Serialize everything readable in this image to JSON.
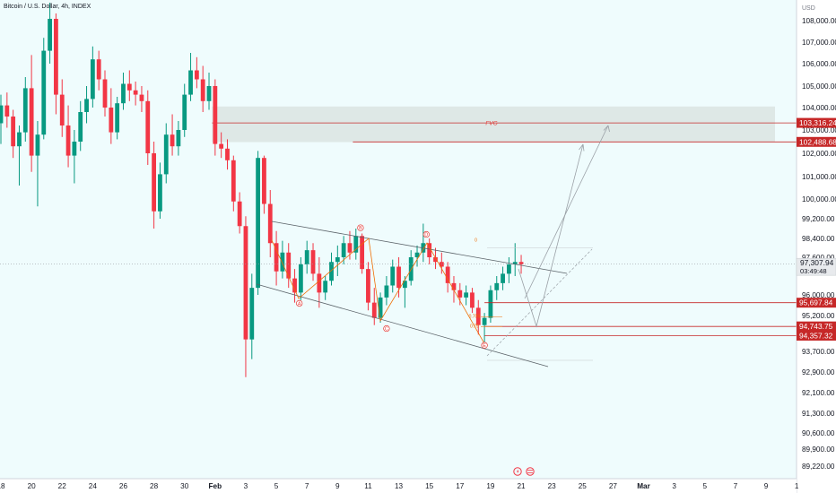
{
  "title": "Bitcoin / U.S. Dollar, 4h, INDEX",
  "currency": "USD",
  "colors": {
    "up": "#089981",
    "down": "#f23645",
    "accent": "#c62828",
    "background": "#effcfd"
  },
  "chart_data": {
    "type": "candlestick",
    "title": "Bitcoin / U.S. Dollar, 4h, INDEX",
    "ylim": [
      88900,
      109000
    ],
    "x_range": [
      "Jan 18",
      "Mar 1"
    ],
    "y_ticks": [
      {
        "value": 108000,
        "label": "108,000.00"
      },
      {
        "value": 107000,
        "label": "107,000.00"
      },
      {
        "value": 106000,
        "label": "106,000.00"
      },
      {
        "value": 105000,
        "label": "105,000.00"
      },
      {
        "value": 104000,
        "label": "104,000.00"
      },
      {
        "value": 103000,
        "label": "103,000.00"
      },
      {
        "value": 102000,
        "label": "102,000.00"
      },
      {
        "value": 101000,
        "label": "101,000.00"
      },
      {
        "value": 100000,
        "label": "100,000.00"
      },
      {
        "value": 99200,
        "label": "99,200.00"
      },
      {
        "value": 98400,
        "label": "98,400.00"
      },
      {
        "value": 97600,
        "label": "97,600.00"
      },
      {
        "value": 96000,
        "label": "96,000.00"
      },
      {
        "value": 95200,
        "label": "95,200.00"
      },
      {
        "value": 93700,
        "label": "93,700.00"
      },
      {
        "value": 92900,
        "label": "92,900.00"
      },
      {
        "value": 92100,
        "label": "92,100.00"
      },
      {
        "value": 91300,
        "label": "91,300.00"
      },
      {
        "value": 90600,
        "label": "90,600.00"
      },
      {
        "value": 89900,
        "label": "89,900.00"
      },
      {
        "value": 89220,
        "label": "89,220.00"
      }
    ],
    "x_ticks": [
      {
        "day": 18,
        "label": "18"
      },
      {
        "day": 20,
        "label": "20"
      },
      {
        "day": 22,
        "label": "22"
      },
      {
        "day": 24,
        "label": "24"
      },
      {
        "day": 26,
        "label": "26"
      },
      {
        "day": 28,
        "label": "28"
      },
      {
        "day": 30,
        "label": "30"
      },
      {
        "day": 32,
        "label": "Feb"
      },
      {
        "day": 34,
        "label": "3"
      },
      {
        "day": 36,
        "label": "5"
      },
      {
        "day": 38,
        "label": "7"
      },
      {
        "day": 40,
        "label": "9"
      },
      {
        "day": 42,
        "label": "11"
      },
      {
        "day": 44,
        "label": "13"
      },
      {
        "day": 46,
        "label": "15"
      },
      {
        "day": 48,
        "label": "17"
      },
      {
        "day": 50,
        "label": "19"
      },
      {
        "day": 52,
        "label": "21"
      },
      {
        "day": 54,
        "label": "23"
      },
      {
        "day": 56,
        "label": "25"
      },
      {
        "day": 58,
        "label": "27"
      },
      {
        "day": 60,
        "label": "Mar"
      },
      {
        "day": 62,
        "label": "3"
      },
      {
        "day": 64,
        "label": "5"
      },
      {
        "day": 66,
        "label": "7"
      },
      {
        "day": 68,
        "label": "9"
      },
      {
        "day": 70,
        "label": "1"
      }
    ],
    "price_levels": [
      {
        "value": 103316.24,
        "label": "103,316.24",
        "color": "#c62828"
      },
      {
        "value": 102488.68,
        "label": "102,488.68",
        "color": "#c62828"
      },
      {
        "value": 95697.84,
        "label": "95,697.84",
        "color": "#c62828"
      },
      {
        "value": 94743.75,
        "label": "94,743.75",
        "color": "#c62828"
      },
      {
        "value": 94357.32,
        "label": "94,357.32",
        "color": "#c62828"
      }
    ],
    "current_price": {
      "value": 97307.94,
      "label": "97,307.94",
      "countdown": "03:49:48"
    },
    "fvg": {
      "label": "FVG",
      "from_day": 31.8,
      "top": 104050,
      "bottom": 102480
    },
    "waves": [
      {
        "label": "A",
        "day": 37.5,
        "price": 95880
      },
      {
        "label": "B",
        "day": 41.5,
        "price": 98650
      },
      {
        "label": "C",
        "day": 43.2,
        "price": 94880
      },
      {
        "label": "D",
        "day": 45.8,
        "price": 98380
      },
      {
        "label": "E",
        "day": 49.6,
        "price": 94180
      }
    ],
    "fib_labels": [
      {
        "text": "0",
        "day": 49.1,
        "price": 98300
      },
      {
        "text": "0.709",
        "day": 49.0,
        "price": 95140
      },
      {
        "text": "0.79",
        "day": 49.0,
        "price": 94740
      }
    ],
    "candles": [
      {
        "t": 18.0,
        "o": 103300,
        "h": 104600,
        "l": 102400,
        "c": 104100
      },
      {
        "t": 18.4,
        "o": 104100,
        "h": 104700,
        "l": 103100,
        "c": 103600
      },
      {
        "t": 18.8,
        "o": 103600,
        "h": 103900,
        "l": 101800,
        "c": 102300
      },
      {
        "t": 19.2,
        "o": 102300,
        "h": 103200,
        "l": 100600,
        "c": 102900
      },
      {
        "t": 19.6,
        "o": 102900,
        "h": 105400,
        "l": 102500,
        "c": 104900
      },
      {
        "t": 20.0,
        "o": 104900,
        "h": 106400,
        "l": 101200,
        "c": 101900
      },
      {
        "t": 20.4,
        "o": 101900,
        "h": 103400,
        "l": 99700,
        "c": 102800
      },
      {
        "t": 20.8,
        "o": 102800,
        "h": 107200,
        "l": 102600,
        "c": 106600
      },
      {
        "t": 21.2,
        "o": 106600,
        "h": 109200,
        "l": 106000,
        "c": 108100
      },
      {
        "t": 21.6,
        "o": 108100,
        "h": 108400,
        "l": 103700,
        "c": 104600
      },
      {
        "t": 22.0,
        "o": 104600,
        "h": 105300,
        "l": 102700,
        "c": 103200
      },
      {
        "t": 22.4,
        "o": 103200,
        "h": 104100,
        "l": 101400,
        "c": 101900
      },
      {
        "t": 22.8,
        "o": 101900,
        "h": 103000,
        "l": 100700,
        "c": 102500
      },
      {
        "t": 23.2,
        "o": 102500,
        "h": 104300,
        "l": 102100,
        "c": 103800
      },
      {
        "t": 23.6,
        "o": 103800,
        "h": 105000,
        "l": 103300,
        "c": 104400
      },
      {
        "t": 24.0,
        "o": 104400,
        "h": 106800,
        "l": 104000,
        "c": 106200
      },
      {
        "t": 24.4,
        "o": 106200,
        "h": 106600,
        "l": 104800,
        "c": 105300
      },
      {
        "t": 24.8,
        "o": 105300,
        "h": 105700,
        "l": 103600,
        "c": 104000
      },
      {
        "t": 25.2,
        "o": 104000,
        "h": 104900,
        "l": 102400,
        "c": 102900
      },
      {
        "t": 25.6,
        "o": 102900,
        "h": 104500,
        "l": 102600,
        "c": 104200
      },
      {
        "t": 26.0,
        "o": 104200,
        "h": 105600,
        "l": 103900,
        "c": 105100
      },
      {
        "t": 26.4,
        "o": 105100,
        "h": 105700,
        "l": 104300,
        "c": 104800
      },
      {
        "t": 26.8,
        "o": 104800,
        "h": 105200,
        "l": 104100,
        "c": 104600
      },
      {
        "t": 27.2,
        "o": 104600,
        "h": 105000,
        "l": 103800,
        "c": 104300
      },
      {
        "t": 27.6,
        "o": 104300,
        "h": 104800,
        "l": 101500,
        "c": 102000
      },
      {
        "t": 28.0,
        "o": 102000,
        "h": 102500,
        "l": 98800,
        "c": 99500
      },
      {
        "t": 28.4,
        "o": 99500,
        "h": 101600,
        "l": 99200,
        "c": 101100
      },
      {
        "t": 28.8,
        "o": 101100,
        "h": 103300,
        "l": 100700,
        "c": 102800
      },
      {
        "t": 29.2,
        "o": 102800,
        "h": 103700,
        "l": 101900,
        "c": 102300
      },
      {
        "t": 29.6,
        "o": 102300,
        "h": 103400,
        "l": 101900,
        "c": 103000
      },
      {
        "t": 30.0,
        "o": 103000,
        "h": 105100,
        "l": 102700,
        "c": 104600
      },
      {
        "t": 30.4,
        "o": 104600,
        "h": 106500,
        "l": 104300,
        "c": 105700
      },
      {
        "t": 30.8,
        "o": 105700,
        "h": 106300,
        "l": 104900,
        "c": 105300
      },
      {
        "t": 31.2,
        "o": 105300,
        "h": 105900,
        "l": 103800,
        "c": 104300
      },
      {
        "t": 31.6,
        "o": 104300,
        "h": 105600,
        "l": 103900,
        "c": 105000
      },
      {
        "t": 32.0,
        "o": 105000,
        "h": 105300,
        "l": 101900,
        "c": 102400
      },
      {
        "t": 32.4,
        "o": 102400,
        "h": 102900,
        "l": 101800,
        "c": 102200
      },
      {
        "t": 32.8,
        "o": 102200,
        "h": 102600,
        "l": 101300,
        "c": 101700
      },
      {
        "t": 33.2,
        "o": 101700,
        "h": 101900,
        "l": 99500,
        "c": 99900
      },
      {
        "t": 33.6,
        "o": 99900,
        "h": 100300,
        "l": 98600,
        "c": 98900
      },
      {
        "t": 34.0,
        "o": 98900,
        "h": 99300,
        "l": 92700,
        "c": 94200
      },
      {
        "t": 34.4,
        "o": 94200,
        "h": 96900,
        "l": 93400,
        "c": 96300
      },
      {
        "t": 34.8,
        "o": 96300,
        "h": 102100,
        "l": 96000,
        "c": 101800
      },
      {
        "t": 35.2,
        "o": 101800,
        "h": 101900,
        "l": 99400,
        "c": 99800
      },
      {
        "t": 35.6,
        "o": 99800,
        "h": 100400,
        "l": 97600,
        "c": 98200
      },
      {
        "t": 36.0,
        "o": 98200,
        "h": 98700,
        "l": 96400,
        "c": 97000
      },
      {
        "t": 36.4,
        "o": 97000,
        "h": 98300,
        "l": 96700,
        "c": 97800
      },
      {
        "t": 36.8,
        "o": 97800,
        "h": 98200,
        "l": 96300,
        "c": 96700
      },
      {
        "t": 37.2,
        "o": 96700,
        "h": 97100,
        "l": 95700,
        "c": 96100
      },
      {
        "t": 37.6,
        "o": 96100,
        "h": 97600,
        "l": 95800,
        "c": 97300
      },
      {
        "t": 38.0,
        "o": 97300,
        "h": 98300,
        "l": 96900,
        "c": 97900
      },
      {
        "t": 38.4,
        "o": 97900,
        "h": 98200,
        "l": 96600,
        "c": 96900
      },
      {
        "t": 38.8,
        "o": 96900,
        "h": 97600,
        "l": 95500,
        "c": 96100
      },
      {
        "t": 39.2,
        "o": 96100,
        "h": 96800,
        "l": 95800,
        "c": 96600
      },
      {
        "t": 39.6,
        "o": 96600,
        "h": 97800,
        "l": 96400,
        "c": 97400
      },
      {
        "t": 40.0,
        "o": 97400,
        "h": 98100,
        "l": 96800,
        "c": 97600
      },
      {
        "t": 40.4,
        "o": 97600,
        "h": 98500,
        "l": 97300,
        "c": 98200
      },
      {
        "t": 40.8,
        "o": 98200,
        "h": 98700,
        "l": 97500,
        "c": 97800
      },
      {
        "t": 41.2,
        "o": 97800,
        "h": 98800,
        "l": 97500,
        "c": 98500
      },
      {
        "t": 41.6,
        "o": 98500,
        "h": 98600,
        "l": 96900,
        "c": 97100
      },
      {
        "t": 42.0,
        "o": 97100,
        "h": 97400,
        "l": 95400,
        "c": 95700
      },
      {
        "t": 42.4,
        "o": 95700,
        "h": 96300,
        "l": 94800,
        "c": 95100
      },
      {
        "t": 42.8,
        "o": 95100,
        "h": 96100,
        "l": 94900,
        "c": 95900
      },
      {
        "t": 43.2,
        "o": 95900,
        "h": 96800,
        "l": 95600,
        "c": 96400
      },
      {
        "t": 43.6,
        "o": 96400,
        "h": 97500,
        "l": 96100,
        "c": 97200
      },
      {
        "t": 44.0,
        "o": 97200,
        "h": 97600,
        "l": 95900,
        "c": 96300
      },
      {
        "t": 44.4,
        "o": 96300,
        "h": 96800,
        "l": 95500,
        "c": 96600
      },
      {
        "t": 44.8,
        "o": 96600,
        "h": 97900,
        "l": 96400,
        "c": 97600
      },
      {
        "t": 45.2,
        "o": 97600,
        "h": 98100,
        "l": 97200,
        "c": 97800
      },
      {
        "t": 45.6,
        "o": 97800,
        "h": 99000,
        "l": 97400,
        "c": 98200
      },
      {
        "t": 46.0,
        "o": 98200,
        "h": 98400,
        "l": 97300,
        "c": 97600
      },
      {
        "t": 46.4,
        "o": 97600,
        "h": 98000,
        "l": 97100,
        "c": 97400
      },
      {
        "t": 46.8,
        "o": 97400,
        "h": 97800,
        "l": 96900,
        "c": 97200
      },
      {
        "t": 47.2,
        "o": 97200,
        "h": 97400,
        "l": 96100,
        "c": 96500
      },
      {
        "t": 47.6,
        "o": 96500,
        "h": 96800,
        "l": 95700,
        "c": 96200
      },
      {
        "t": 48.0,
        "o": 96200,
        "h": 96500,
        "l": 95600,
        "c": 95900
      },
      {
        "t": 48.4,
        "o": 95900,
        "h": 96400,
        "l": 95600,
        "c": 96100
      },
      {
        "t": 48.8,
        "o": 96100,
        "h": 96300,
        "l": 95300,
        "c": 95500
      },
      {
        "t": 49.2,
        "o": 95500,
        "h": 95800,
        "l": 94400,
        "c": 94800
      },
      {
        "t": 49.6,
        "o": 94800,
        "h": 95300,
        "l": 94000,
        "c": 95100
      },
      {
        "t": 50.0,
        "o": 95100,
        "h": 96400,
        "l": 94900,
        "c": 96200
      },
      {
        "t": 50.4,
        "o": 96200,
        "h": 96800,
        "l": 95800,
        "c": 96500
      },
      {
        "t": 50.8,
        "o": 96500,
        "h": 97200,
        "l": 96200,
        "c": 96900
      },
      {
        "t": 51.2,
        "o": 96900,
        "h": 97600,
        "l": 96500,
        "c": 97300
      },
      {
        "t": 51.6,
        "o": 97300,
        "h": 98200,
        "l": 96800,
        "c": 97400
      },
      {
        "t": 52.0,
        "o": 97400,
        "h": 97700,
        "l": 96900,
        "c": 97300
      }
    ]
  }
}
